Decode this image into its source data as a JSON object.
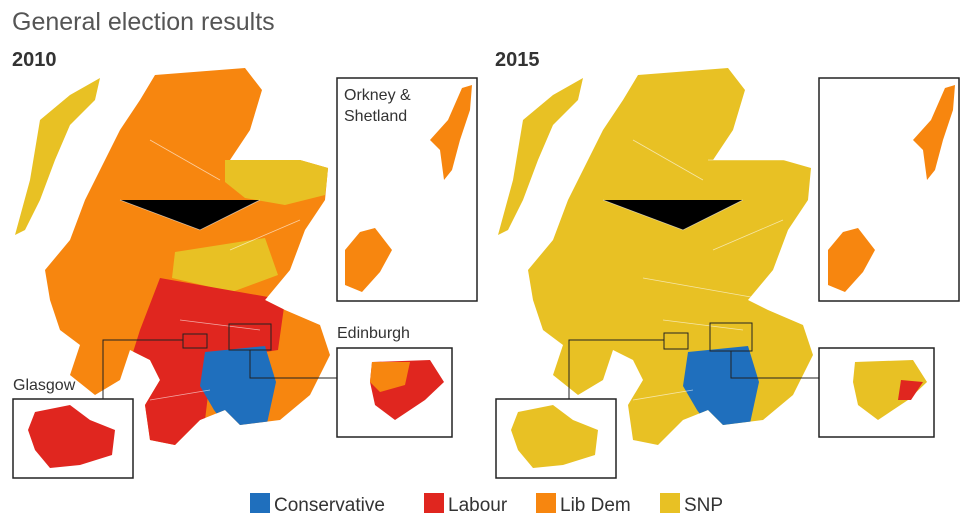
{
  "title": "General election results",
  "maps": [
    {
      "year": "2010"
    },
    {
      "year": "2015"
    }
  ],
  "insets": {
    "orkney_shetland": [
      "Orkney &",
      "Shetland"
    ],
    "edinburgh": "Edinburgh",
    "glasgow": "Glasgow"
  },
  "legend": [
    {
      "name": "Conservative",
      "color": "#1f6fbd"
    },
    {
      "name": "Labour",
      "color": "#e0261f"
    },
    {
      "name": "Lib Dem",
      "color": "#f7860f"
    },
    {
      "name": "SNP",
      "color": "#e8c124"
    }
  ]
}
